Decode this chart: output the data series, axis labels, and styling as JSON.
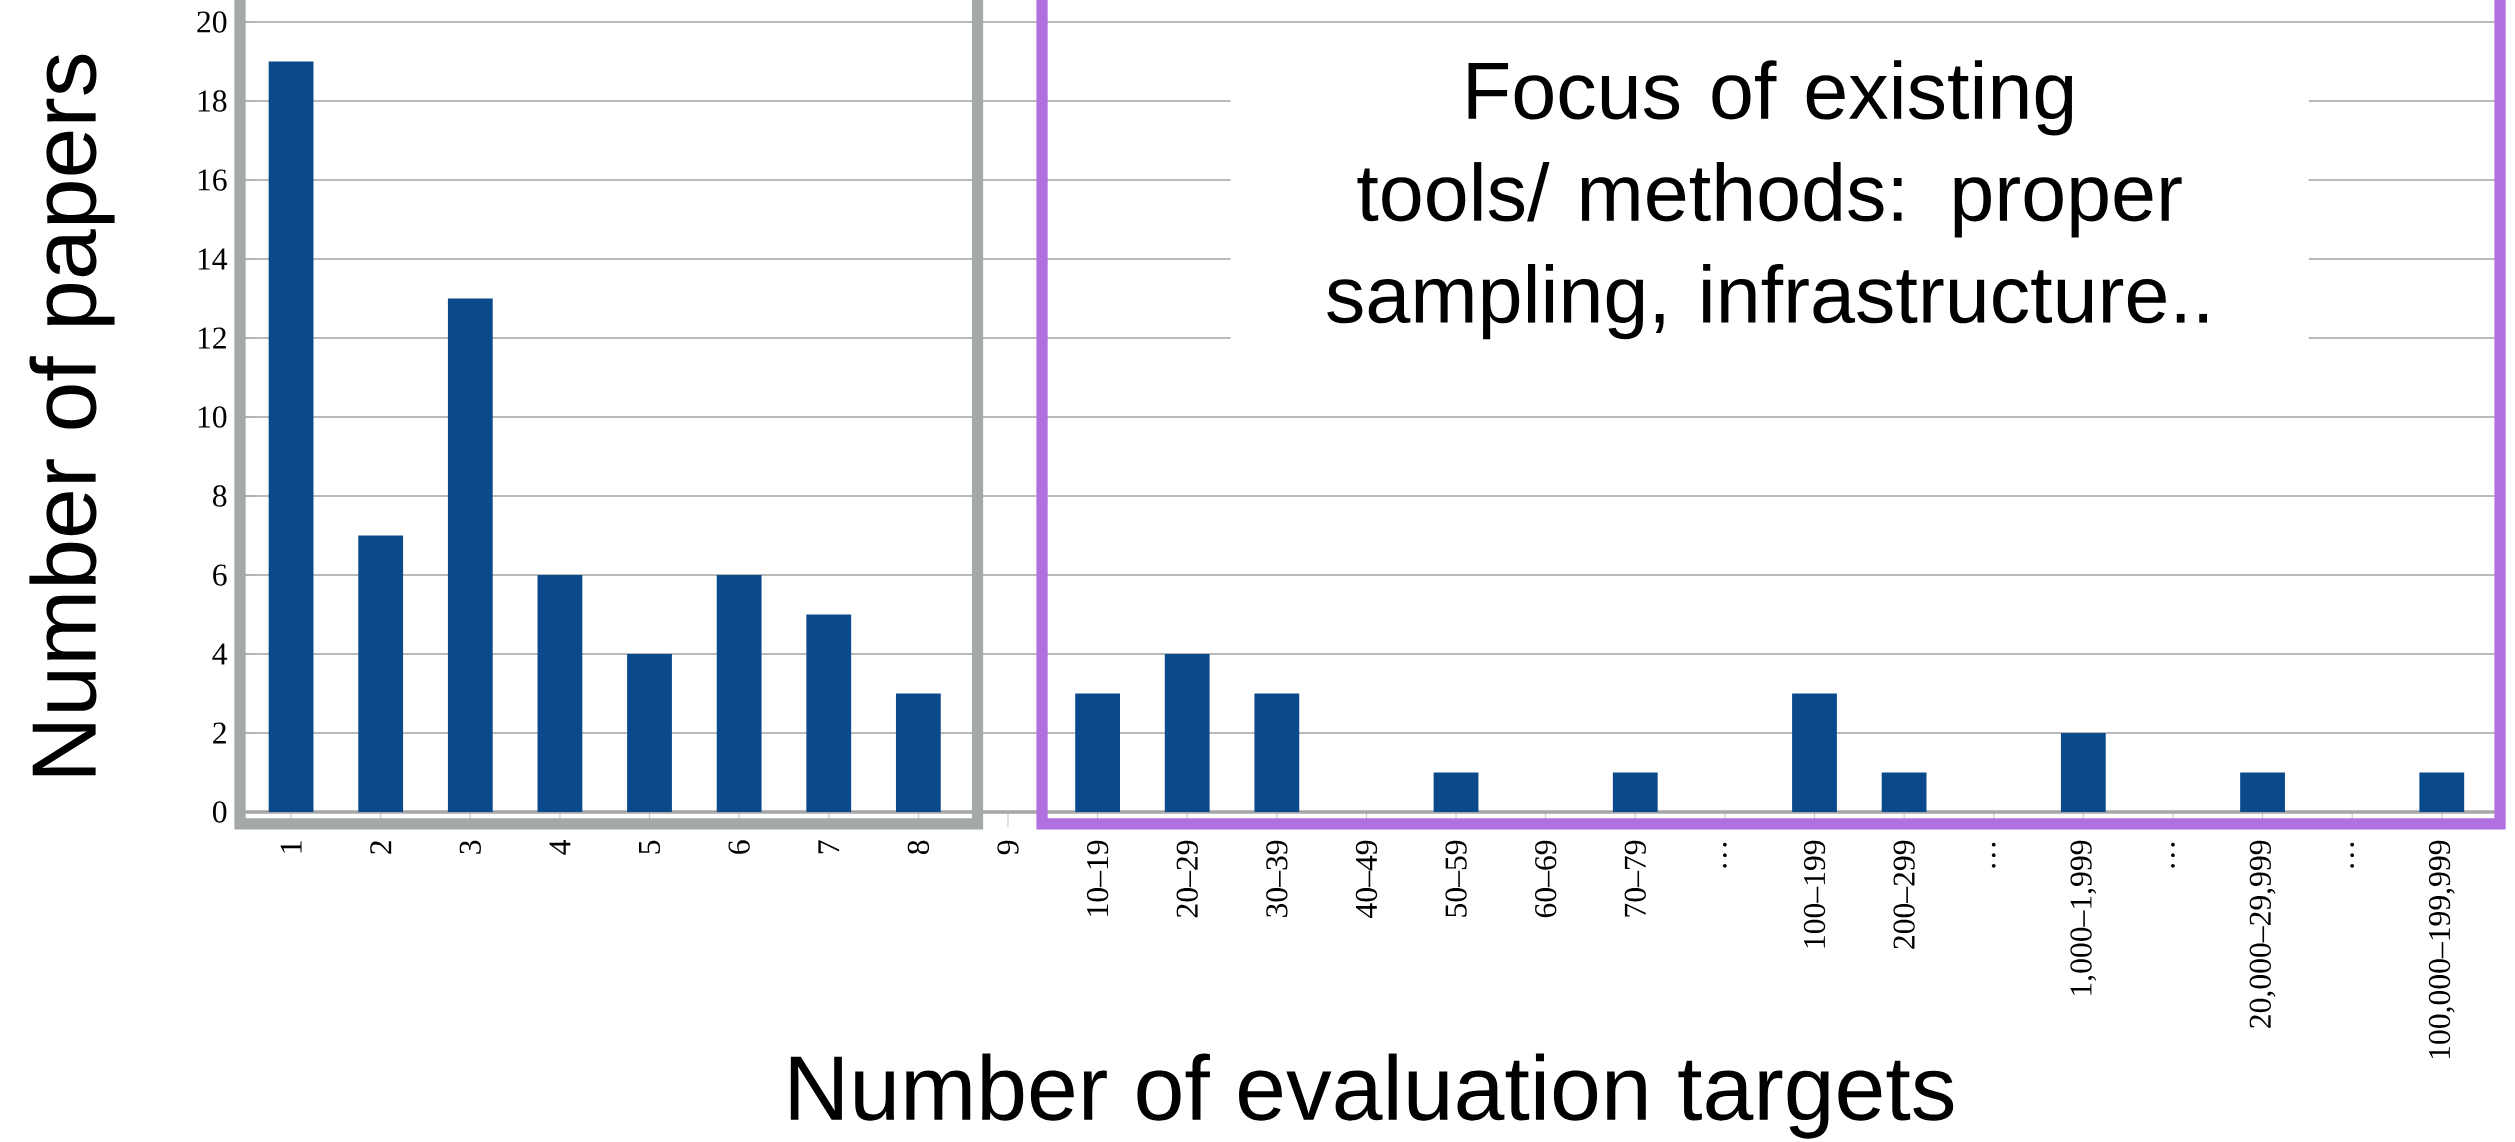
{
  "chart_data": {
    "type": "bar",
    "xlabel": "Number of evaluation targets",
    "ylabel": "Number of papers",
    "categories": [
      "1",
      "2",
      "3",
      "4",
      "5",
      "6",
      "7",
      "8",
      "9",
      "10–19",
      "20–29",
      "30–39",
      "40–49",
      "50–59",
      "60–69",
      "70–79",
      "…",
      "100–199",
      "200–299",
      "…",
      "1,000–1,999",
      "…",
      "20,000–29,999",
      "…",
      "100,000–199,999"
    ],
    "values": [
      19,
      7,
      13,
      6,
      4,
      6,
      5,
      3,
      0,
      3,
      4,
      3,
      0,
      1,
      0,
      1,
      0,
      3,
      1,
      0,
      2,
      0,
      1,
      0,
      1
    ],
    "color": "#0b4a8a",
    "ylim": [
      0,
      20
    ],
    "yticks": [
      0,
      2,
      4,
      6,
      8,
      10,
      12,
      14,
      16,
      18,
      20
    ],
    "grid": "y",
    "annotations": [
      "Focus of existing tools/ methods: proper sampling, infrastructure.."
    ]
  }
}
